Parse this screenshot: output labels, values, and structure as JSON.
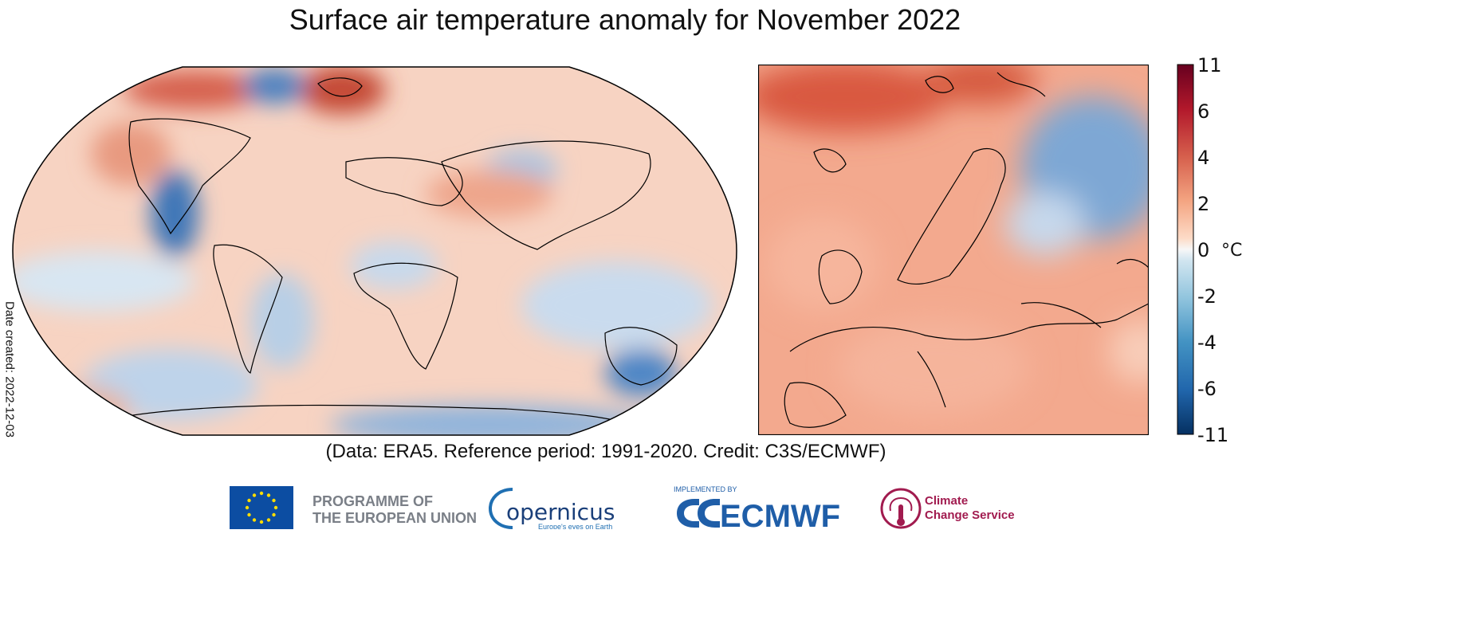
{
  "title": "Surface air temperature anomaly for November 2022",
  "credit": "(Data: ERA5.  Reference period: 1991-2020.  Credit: C3S/ECMWF)",
  "date_created": "Date created: 2022-12-03",
  "colorbar": {
    "unit": "°C",
    "ticks": [
      "11",
      "6",
      "4",
      "2",
      "0",
      "-2",
      "-4",
      "-6",
      "-11"
    ],
    "colors": [
      "#053061",
      "#2166ac",
      "#4393c3",
      "#92c5de",
      "#d1e5f0",
      "#f7f7f7",
      "#fddbc7",
      "#f4a582",
      "#d6604d",
      "#b2182b",
      "#67001f"
    ]
  },
  "maps": {
    "world": {
      "name": "global-anomaly-map",
      "projection": "Robinson"
    },
    "europe": {
      "name": "europe-anomaly-map"
    }
  },
  "logos": {
    "eu_line1": "PROGRAMME OF",
    "eu_line2": "THE EUROPEAN UNION",
    "copernicus": "opernicus",
    "copernicus_tagline": "Europe's eyes on Earth",
    "ecmwf_small": "IMPLEMENTED BY",
    "ecmwf": "ECMWF",
    "c3s_line1": "Climate",
    "c3s_line2": "Change Service"
  },
  "icons": [
    "eu-flag-icon",
    "copernicus-logo-icon",
    "ecmwf-logo-icon",
    "c3s-thermometer-icon"
  ]
}
